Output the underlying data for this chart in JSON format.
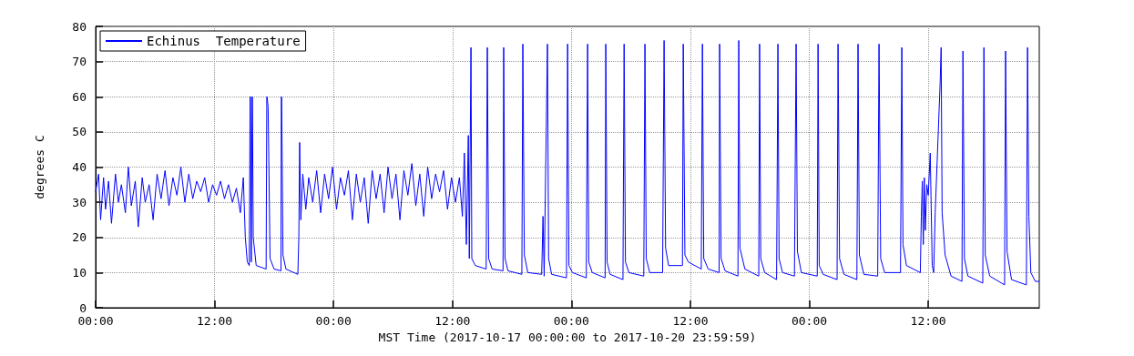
{
  "chart_data": {
    "type": "line",
    "xlabel": "MST Time (2017-10-17 00:00:00 to 2017-10-20 23:59:59)",
    "ylabel": "degrees C",
    "xlim": [
      "2017-10-17T00:00",
      "2017-10-20T23:12"
    ],
    "xticks": [
      {
        "value": "2017-10-17T00:00",
        "label": "00:00"
      },
      {
        "value": "2017-10-17T12:00",
        "label": "12:00"
      },
      {
        "value": "2017-10-18T00:00",
        "label": "00:00"
      },
      {
        "value": "2017-10-18T12:00",
        "label": "12:00"
      },
      {
        "value": "2017-10-19T00:00",
        "label": "00:00"
      },
      {
        "value": "2017-10-19T12:00",
        "label": "12:00"
      },
      {
        "value": "2017-10-20T00:00",
        "label": "00:00"
      },
      {
        "value": "2017-10-20T12:00",
        "label": "12:00"
      }
    ],
    "ylim": [
      0,
      80
    ],
    "yticks": [
      0,
      10,
      20,
      30,
      40,
      50,
      60,
      70,
      80
    ],
    "grid": true,
    "legend": "top left",
    "marker": "none",
    "line_style": "solid",
    "series": [
      {
        "name": "Echinus  Temperature",
        "color": "#0000ff",
        "x": [
          "2017-10-17T00:00",
          "2017-10-17T00:18",
          "2017-10-17T00:30",
          "2017-10-17T00:48",
          "2017-10-17T01:00",
          "2017-10-17T01:18",
          "2017-10-17T01:36",
          "2017-10-17T02:00",
          "2017-10-17T02:18",
          "2017-10-17T02:36",
          "2017-10-17T03:00",
          "2017-10-17T03:18",
          "2017-10-17T03:36",
          "2017-10-17T04:00",
          "2017-10-17T04:18",
          "2017-10-17T04:42",
          "2017-10-17T05:00",
          "2017-10-17T05:24",
          "2017-10-17T05:48",
          "2017-10-17T06:12",
          "2017-10-17T06:36",
          "2017-10-17T07:00",
          "2017-10-17T07:24",
          "2017-10-17T07:48",
          "2017-10-17T08:12",
          "2017-10-17T08:36",
          "2017-10-17T09:00",
          "2017-10-17T09:24",
          "2017-10-17T09:48",
          "2017-10-17T10:12",
          "2017-10-17T10:36",
          "2017-10-17T11:00",
          "2017-10-17T11:24",
          "2017-10-17T11:48",
          "2017-10-17T12:12",
          "2017-10-17T12:36",
          "2017-10-17T13:00",
          "2017-10-17T13:24",
          "2017-10-17T13:48",
          "2017-10-17T14:12",
          "2017-10-17T14:36",
          "2017-10-17T14:54",
          "2017-10-17T15:06",
          "2017-10-17T15:18",
          "2017-10-17T15:30",
          "2017-10-17T15:35",
          "2017-10-17T15:36",
          "2017-10-17T15:37",
          "2017-10-17T15:42",
          "2017-10-17T15:47",
          "2017-10-17T15:48",
          "2017-10-17T15:49",
          "2017-10-17T15:54",
          "2017-10-17T16:12",
          "2017-10-17T17:12",
          "2017-10-17T17:16",
          "2017-10-17T17:17",
          "2017-10-17T17:18",
          "2017-10-17T17:24",
          "2017-10-17T17:36",
          "2017-10-17T18:00",
          "2017-10-17T18:42",
          "2017-10-17T18:44",
          "2017-10-17T18:45",
          "2017-10-17T18:46",
          "2017-10-17T18:54",
          "2017-10-17T19:12",
          "2017-10-17T20:24",
          "2017-10-17T20:30",
          "2017-10-17T20:35",
          "2017-10-17T20:42",
          "2017-10-17T20:54",
          "2017-10-17T21:12",
          "2017-10-17T21:30",
          "2017-10-17T21:54",
          "2017-10-17T22:18",
          "2017-10-17T22:42",
          "2017-10-17T23:06",
          "2017-10-17T23:30",
          "2017-10-17T23:54",
          "2017-10-18T00:18",
          "2017-10-18T00:42",
          "2017-10-18T01:06",
          "2017-10-18T01:30",
          "2017-10-18T01:54",
          "2017-10-18T02:18",
          "2017-10-18T02:42",
          "2017-10-18T03:06",
          "2017-10-18T03:30",
          "2017-10-18T03:54",
          "2017-10-18T04:18",
          "2017-10-18T04:42",
          "2017-10-18T05:06",
          "2017-10-18T05:30",
          "2017-10-18T05:54",
          "2017-10-18T06:18",
          "2017-10-18T06:42",
          "2017-10-18T07:06",
          "2017-10-18T07:30",
          "2017-10-18T07:54",
          "2017-10-18T08:18",
          "2017-10-18T08:42",
          "2017-10-18T09:06",
          "2017-10-18T09:30",
          "2017-10-18T09:54",
          "2017-10-18T10:18",
          "2017-10-18T10:42",
          "2017-10-18T11:06",
          "2017-10-18T11:30",
          "2017-10-18T11:54",
          "2017-10-18T12:18",
          "2017-10-18T12:42",
          "2017-10-18T13:00",
          "2017-10-18T13:12",
          "2017-10-18T13:24",
          "2017-10-18T13:36",
          "2017-10-18T13:42",
          "2017-10-18T13:52",
          "2017-10-18T13:57",
          "2017-10-18T14:18",
          "2017-10-18T15:24",
          "2017-10-18T15:31",
          "2017-10-18T15:39",
          "2017-10-18T16:00",
          "2017-10-18T17:06",
          "2017-10-18T17:10",
          "2017-10-18T17:18",
          "2017-10-18T17:36",
          "2017-10-18T19:00",
          "2017-10-18T19:06",
          "2017-10-18T19:15",
          "2017-10-18T19:36",
          "2017-10-18T21:00",
          "2017-10-18T21:08",
          "2017-10-18T21:15",
          "2017-10-18T21:35",
          "2017-10-18T21:42",
          "2017-10-18T22:00",
          "2017-10-18T23:30",
          "2017-10-18T23:37",
          "2017-10-18T23:45",
          "2017-10-19T00:06",
          "2017-10-19T01:30",
          "2017-10-19T01:38",
          "2017-10-19T01:45",
          "2017-10-19T02:06",
          "2017-10-19T03:24",
          "2017-10-19T03:28",
          "2017-10-19T03:36",
          "2017-10-19T03:54",
          "2017-10-19T05:12",
          "2017-10-19T05:19",
          "2017-10-19T05:27",
          "2017-10-19T05:48",
          "2017-10-19T07:18",
          "2017-10-19T07:25",
          "2017-10-19T07:33",
          "2017-10-19T07:54",
          "2017-10-19T09:12",
          "2017-10-19T09:21",
          "2017-10-19T09:30",
          "2017-10-19T09:48",
          "2017-10-19T11:12",
          "2017-10-19T11:17",
          "2017-10-19T11:27",
          "2017-10-19T11:48",
          "2017-10-19T13:06",
          "2017-10-19T13:13",
          "2017-10-19T13:21",
          "2017-10-19T13:48",
          "2017-10-19T14:54",
          "2017-10-19T14:57",
          "2017-10-19T15:06",
          "2017-10-19T15:30",
          "2017-10-19T16:48",
          "2017-10-19T16:53",
          "2017-10-19T17:00",
          "2017-10-19T17:30",
          "2017-10-19T18:54",
          "2017-10-19T18:59",
          "2017-10-19T19:06",
          "2017-10-19T19:30",
          "2017-10-19T20:42",
          "2017-10-19T20:50",
          "2017-10-19T20:57",
          "2017-10-19T21:18",
          "2017-10-19T22:30",
          "2017-10-19T22:40",
          "2017-10-19T22:48",
          "2017-10-19T23:12",
          "2017-10-20T00:48",
          "2017-10-20T00:53",
          "2017-10-20T01:00",
          "2017-10-20T01:24",
          "2017-10-20T02:48",
          "2017-10-20T02:54",
          "2017-10-20T03:03",
          "2017-10-20T03:30",
          "2017-10-20T04:48",
          "2017-10-20T04:55",
          "2017-10-20T05:03",
          "2017-10-20T05:30",
          "2017-10-20T06:54",
          "2017-10-20T07:02",
          "2017-10-20T07:12",
          "2017-10-20T07:36",
          "2017-10-20T09:12",
          "2017-10-20T09:20",
          "2017-10-20T09:27",
          "2017-10-20T09:48",
          "2017-10-20T11:12",
          "2017-10-20T11:18",
          "2017-10-20T11:24",
          "2017-10-20T11:30",
          "2017-10-20T11:36",
          "2017-10-20T11:42",
          "2017-10-20T11:51",
          "2017-10-20T12:00",
          "2017-10-20T12:12",
          "2017-10-20T12:24",
          "2017-10-20T12:33",
          "2017-10-20T12:42",
          "2017-10-20T13:12",
          "2017-10-20T13:18",
          "2017-10-20T13:24",
          "2017-10-20T13:42",
          "2017-10-20T14:18",
          "2017-10-20T15:24",
          "2017-10-20T15:30",
          "2017-10-20T15:39",
          "2017-10-20T16:00",
          "2017-10-20T17:30",
          "2017-10-20T17:37",
          "2017-10-20T17:45",
          "2017-10-20T18:12",
          "2017-10-20T19:42",
          "2017-10-20T19:48",
          "2017-10-20T19:57",
          "2017-10-20T20:24",
          "2017-10-20T21:54",
          "2017-10-20T22:01",
          "2017-10-20T22:09",
          "2017-10-20T22:21",
          "2017-10-20T22:48",
          "2017-10-20T23:12"
        ],
        "values": [
          33,
          38,
          25,
          37,
          28,
          36,
          24,
          38,
          30,
          35,
          27,
          40,
          29,
          36,
          23,
          37,
          30,
          35,
          25,
          38,
          31,
          39,
          29,
          37,
          32,
          40,
          30,
          38,
          31,
          36,
          33,
          37,
          30,
          35,
          32,
          36,
          31,
          35,
          30,
          34,
          27,
          37,
          20,
          13,
          12,
          60,
          null,
          60,
          13,
          60,
          null,
          60,
          20,
          12,
          11,
          60,
          null,
          60,
          57,
          14,
          11,
          10.5,
          60,
          null,
          60,
          15,
          11,
          9.5,
          20,
          47,
          25,
          38,
          28,
          37,
          30,
          39,
          27,
          38,
          31,
          40,
          28,
          37,
          32,
          39,
          25,
          38,
          30,
          37,
          24,
          39,
          31,
          38,
          27,
          40,
          31,
          38,
          25,
          39,
          32,
          41,
          29,
          38,
          26,
          40,
          31,
          38,
          33,
          39,
          28,
          37,
          30,
          37,
          26,
          44,
          18,
          49,
          14,
          74,
          14,
          12,
          11,
          74,
          14,
          11,
          10.5,
          74,
          14,
          10.5,
          9.5,
          75,
          15,
          10,
          9.5,
          26,
          9,
          75,
          14,
          9.5,
          8.5,
          75,
          12,
          10,
          8.5,
          75,
          13,
          10,
          8.5,
          75,
          13,
          9.5,
          8,
          75,
          13,
          10,
          9,
          75,
          14,
          10,
          10,
          76,
          17,
          12,
          12,
          75,
          15,
          13,
          11,
          75,
          14,
          11,
          10,
          75,
          14,
          10.5,
          9,
          76,
          17,
          11,
          9,
          75,
          14,
          10,
          8,
          75,
          14,
          10,
          9,
          75,
          16,
          10,
          9,
          75,
          12,
          9.5,
          8,
          75,
          14,
          9.5,
          8,
          75,
          15,
          9.5,
          9,
          75,
          14,
          10,
          10,
          74,
          18,
          12,
          10,
          26,
          36,
          18,
          37,
          22,
          35,
          32,
          44,
          12,
          10,
          27,
          64,
          74,
          27,
          15,
          9,
          7.5,
          73,
          14,
          9,
          7,
          74,
          15,
          9,
          6.5,
          73,
          16,
          8,
          6.5,
          74,
          26,
          10,
          7.5,
          7.5
        ]
      }
    ]
  }
}
